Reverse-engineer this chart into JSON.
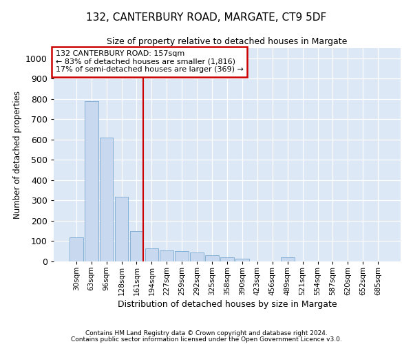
{
  "title1": "132, CANTERBURY ROAD, MARGATE, CT9 5DF",
  "title2": "Size of property relative to detached houses in Margate",
  "xlabel": "Distribution of detached houses by size in Margate",
  "ylabel": "Number of detached properties",
  "categories": [
    "30sqm",
    "63sqm",
    "96sqm",
    "128sqm",
    "161sqm",
    "194sqm",
    "227sqm",
    "259sqm",
    "292sqm",
    "325sqm",
    "358sqm",
    "390sqm",
    "423sqm",
    "456sqm",
    "489sqm",
    "521sqm",
    "554sqm",
    "587sqm",
    "620sqm",
    "652sqm",
    "685sqm"
  ],
  "values": [
    120,
    790,
    610,
    320,
    150,
    65,
    55,
    50,
    45,
    30,
    20,
    15,
    0,
    0,
    20,
    0,
    0,
    0,
    0,
    0,
    0
  ],
  "bar_color": "#c8d8ee",
  "bar_edge_color": "#7aaad0",
  "ref_line_index": 4,
  "annotation_line1": "132 CANTERBURY ROAD: 157sqm",
  "annotation_line2": "← 83% of detached houses are smaller (1,816)",
  "annotation_line3": "17% of semi-detached houses are larger (369) →",
  "annotation_box_color": "#ffffff",
  "annotation_box_edge": "#cc0000",
  "ref_line_color": "#cc0000",
  "ylim": [
    0,
    1050
  ],
  "yticks": [
    0,
    100,
    200,
    300,
    400,
    500,
    600,
    700,
    800,
    900,
    1000
  ],
  "footer1": "Contains HM Land Registry data © Crown copyright and database right 2024.",
  "footer2": "Contains public sector information licensed under the Open Government Licence v3.0.",
  "fig_bg_color": "#ffffff",
  "plot_bg_color": "#dce8f5"
}
